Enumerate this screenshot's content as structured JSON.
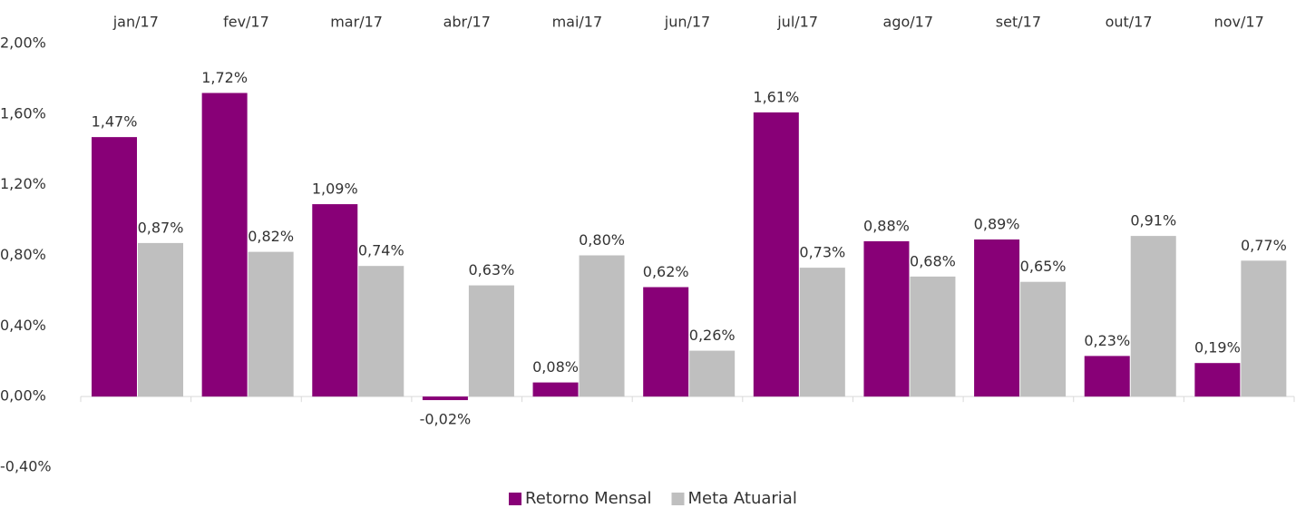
{
  "chart_data": {
    "type": "bar",
    "categories": [
      "jan/17",
      "fev/17",
      "mar/17",
      "abr/17",
      "mai/17",
      "jun/17",
      "jul/17",
      "ago/17",
      "set/17",
      "out/17",
      "nov/17"
    ],
    "series": [
      {
        "name": "Retorno Mensal",
        "color": "#880077",
        "values": [
          1.47,
          1.72,
          1.09,
          -0.02,
          0.08,
          0.62,
          1.61,
          0.88,
          0.89,
          0.23,
          0.19
        ],
        "value_labels": [
          "1,47%",
          "1,72%",
          "1,09%",
          "-0,02%",
          "0,08%",
          "0,62%",
          "1,61%",
          "0,88%",
          "0,89%",
          "0,23%",
          "0,19%"
        ]
      },
      {
        "name": "Meta Atuarial",
        "color": "#bfbfbf",
        "values": [
          0.87,
          0.82,
          0.74,
          0.63,
          0.8,
          0.26,
          0.73,
          0.68,
          0.65,
          0.91,
          0.77
        ],
        "value_labels": [
          "0,87%",
          "0,82%",
          "0,74%",
          "0,63%",
          "0,80%",
          "0,26%",
          "0,73%",
          "0,68%",
          "0,65%",
          "0,91%",
          "0,77%"
        ]
      }
    ],
    "ylim": [
      -0.4,
      2.0
    ],
    "yticks": [
      {
        "value": -0.4,
        "label": "-0,40%"
      },
      {
        "value": 0,
        "label": "0,00%"
      },
      {
        "value": 0.4,
        "label": "0,40%"
      },
      {
        "value": 0.8,
        "label": "0,80%"
      },
      {
        "value": 1.2,
        "label": "1,20%"
      },
      {
        "value": 1.6,
        "label": "1,60%"
      },
      {
        "value": 2.0,
        "label": "2,00%"
      }
    ],
    "legend": "bottom"
  }
}
